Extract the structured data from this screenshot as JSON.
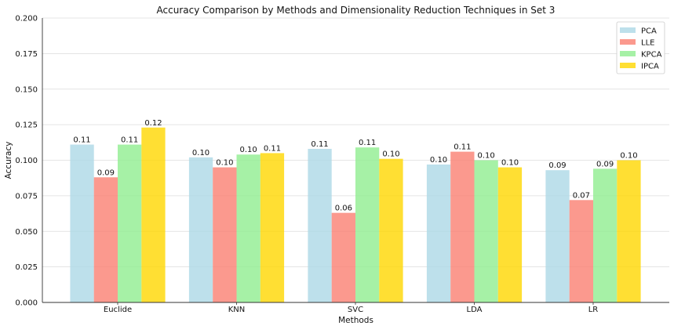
{
  "chart_data": {
    "type": "bar",
    "title": "Accuracy Comparison by Methods and Dimensionality Reduction Techniques in Set 3",
    "xlabel": "Methods",
    "ylabel": "Accuracy",
    "categories": [
      "Euclide",
      "KNN",
      "SVC",
      "LDA",
      "LR"
    ],
    "ylim": [
      0,
      0.2
    ],
    "yticks": [
      "0.000",
      "0.025",
      "0.050",
      "0.075",
      "0.100",
      "0.125",
      "0.150",
      "0.175",
      "0.200"
    ],
    "grid": true,
    "legend_position": "top-right",
    "series": [
      {
        "name": "PCA",
        "color": "#add8e6",
        "values": [
          0.111,
          0.102,
          0.108,
          0.097,
          0.093
        ],
        "labels": [
          "0.11",
          "0.10",
          "0.11",
          "0.10",
          "0.09"
        ]
      },
      {
        "name": "LLE",
        "color": "#fa8072",
        "values": [
          0.088,
          0.095,
          0.063,
          0.106,
          0.072
        ],
        "labels": [
          "0.09",
          "0.10",
          "0.06",
          "0.11",
          "0.07"
        ]
      },
      {
        "name": "KPCA",
        "color": "#90ee90",
        "values": [
          0.111,
          0.104,
          0.109,
          0.1,
          0.094
        ],
        "labels": [
          "0.11",
          "0.10",
          "0.11",
          "0.10",
          "0.09"
        ]
      },
      {
        "name": "IPCA",
        "color": "#ffd700",
        "values": [
          0.123,
          0.105,
          0.101,
          0.095,
          0.1
        ],
        "labels": [
          "0.12",
          "0.11",
          "0.10",
          "0.10",
          "0.10"
        ]
      }
    ]
  }
}
